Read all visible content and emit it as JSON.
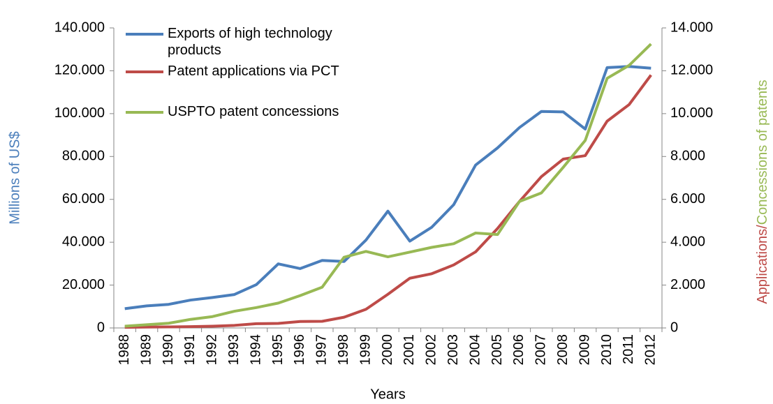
{
  "chart_data": {
    "type": "line",
    "xlabel": "Years",
    "ylabel": "Millions of US$",
    "y2label_parts": [
      {
        "text": "Applications/",
        "color": "#be4b48"
      },
      {
        "text": "Concessions of patents",
        "color": "#98b954"
      }
    ],
    "ylabel_color": "#4a7ebb",
    "categories": [
      "1988",
      "1989",
      "1990",
      "1991",
      "1992",
      "1993",
      "1994",
      "1995",
      "1996",
      "1997",
      "1998",
      "1999",
      "2000",
      "2001",
      "2002",
      "2003",
      "2004",
      "2005",
      "2006",
      "2007",
      "2008",
      "2009",
      "2010",
      "2011",
      "2012"
    ],
    "series": [
      {
        "name": "Exports of high technology products",
        "color": "#4a7ebb",
        "axis": "y",
        "values": [
          9000,
          10300,
          11000,
          13000,
          14200,
          15600,
          20200,
          29900,
          27700,
          31500,
          31000,
          41000,
          54500,
          40500,
          47000,
          57500,
          76000,
          84000,
          93500,
          101000,
          100800,
          92800,
          121500,
          122000,
          121200
        ]
      },
      {
        "name": "Patent applications via PCT",
        "color": "#be4b48",
        "axis": "y2",
        "values": [
          30,
          40,
          50,
          60,
          80,
          120,
          200,
          210,
          300,
          310,
          500,
          870,
          1570,
          2320,
          2530,
          2940,
          3550,
          4640,
          5900,
          7060,
          7880,
          8040,
          9650,
          10420,
          11800
        ]
      },
      {
        "name": "USPTO patent concessions",
        "color": "#98b954",
        "axis": "y2",
        "values": [
          80,
          150,
          220,
          400,
          530,
          780,
          950,
          1160,
          1510,
          1900,
          3300,
          3570,
          3320,
          3540,
          3760,
          3930,
          4430,
          4360,
          5900,
          6300,
          7500,
          8750,
          11650,
          12250,
          13250
        ]
      }
    ],
    "ylim": [
      0,
      140000
    ],
    "yticks": [
      0,
      {
        "value": 20000,
        "label": "20.000"
      },
      {
        "value": 40000,
        "label": "40.000"
      },
      {
        "value": 60000,
        "label": "60.000"
      },
      {
        "value": 80000,
        "label": "80.000"
      },
      {
        "value": 100000,
        "label": "100.000"
      },
      {
        "value": 120000,
        "label": "120.000"
      },
      {
        "value": 140000,
        "label": "140.000"
      }
    ],
    "y2lim": [
      0,
      14000
    ],
    "y2ticks": [
      0,
      {
        "value": 2000,
        "label": "2.000"
      },
      {
        "value": 4000,
        "label": "4.000"
      },
      {
        "value": 6000,
        "label": "6.000"
      },
      {
        "value": 8000,
        "label": "8.000"
      },
      {
        "value": 10000,
        "label": "10.000"
      },
      {
        "value": 12000,
        "label": "12.000"
      },
      {
        "value": 14000,
        "label": "14.000"
      }
    ],
    "grid": false,
    "legend": "upper left"
  }
}
